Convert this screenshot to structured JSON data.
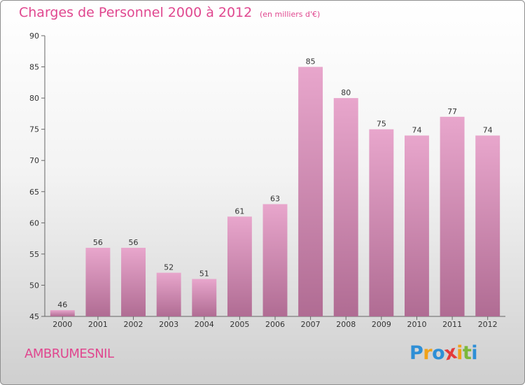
{
  "chart_data": {
    "type": "bar",
    "title": "Charges de Personnel 2000 à 2012",
    "subtitle": "(en milliers d'€)",
    "xlabel": "",
    "ylabel": "",
    "categories": [
      "2000",
      "2001",
      "2002",
      "2003",
      "2004",
      "2005",
      "2006",
      "2007",
      "2008",
      "2009",
      "2010",
      "2011",
      "2012"
    ],
    "values": [
      46,
      56,
      56,
      52,
      51,
      61,
      63,
      85,
      80,
      75,
      74,
      77,
      74
    ],
    "data_labels": [
      "46",
      "56",
      "56",
      "52",
      "51",
      "61",
      "63",
      "85",
      "80",
      "75",
      "74",
      "77",
      "74"
    ],
    "ylim": [
      45,
      90
    ],
    "yticks": [
      45,
      50,
      55,
      60,
      65,
      70,
      75,
      80,
      85,
      90
    ],
    "ytick_labels": [
      "45",
      "50",
      "55",
      "60",
      "65",
      "70",
      "75",
      "80",
      "85",
      "90"
    ],
    "grid": false,
    "legend": "none",
    "bar_color_top": "#e8a6cc",
    "bar_color_bottom": "#b06c93"
  },
  "footer": {
    "place": "AMBRUMESNIL",
    "logo_letters": [
      {
        "char": "P",
        "color": "#2e8fd6"
      },
      {
        "char": "r",
        "color": "#f0a21a"
      },
      {
        "char": "o",
        "color": "#2e8fd6"
      },
      {
        "char": "x",
        "color": "#e43a3a"
      },
      {
        "char": "i",
        "color": "#f0a21a"
      },
      {
        "char": "t",
        "color": "#7cb83a"
      },
      {
        "char": "i",
        "color": "#2e8fd6"
      }
    ]
  }
}
